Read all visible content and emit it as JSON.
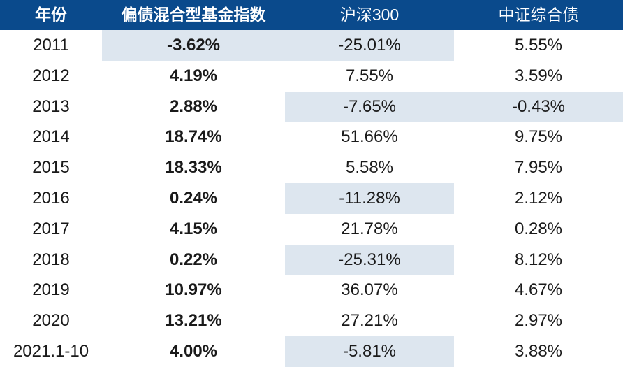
{
  "header": {
    "year": "年份",
    "fund": "偏债混合型基金指数",
    "hs300": "沪深300",
    "bond": "中证综合债"
  },
  "rows": [
    {
      "year": "2011",
      "fund": "-3.62%",
      "hs300": "-25.01%",
      "bond": "5.55%"
    },
    {
      "year": "2012",
      "fund": "4.19%",
      "hs300": "7.55%",
      "bond": "3.59%"
    },
    {
      "year": "2013",
      "fund": "2.88%",
      "hs300": "-7.65%",
      "bond": "-0.43%"
    },
    {
      "year": "2014",
      "fund": "18.74%",
      "hs300": "51.66%",
      "bond": "9.75%"
    },
    {
      "year": "2015",
      "fund": "18.33%",
      "hs300": "5.58%",
      "bond": "7.95%"
    },
    {
      "year": "2016",
      "fund": "0.24%",
      "hs300": "-11.28%",
      "bond": "2.12%"
    },
    {
      "year": "2017",
      "fund": "4.15%",
      "hs300": "21.78%",
      "bond": "0.28%"
    },
    {
      "year": "2018",
      "fund": "0.22%",
      "hs300": "-25.31%",
      "bond": "8.12%"
    },
    {
      "year": "2019",
      "fund": "10.97%",
      "hs300": "36.07%",
      "bond": "4.67%"
    },
    {
      "year": "2020",
      "fund": "13.21%",
      "hs300": "27.21%",
      "bond": "2.97%"
    },
    {
      "year": "2021.1-10",
      "fund": "4.00%",
      "hs300": "-5.81%",
      "bond": "3.88%"
    }
  ],
  "colors": {
    "header_bg": "#0a4a8c",
    "header_text": "#ffffff",
    "highlight_bg": "#dde6ef"
  }
}
